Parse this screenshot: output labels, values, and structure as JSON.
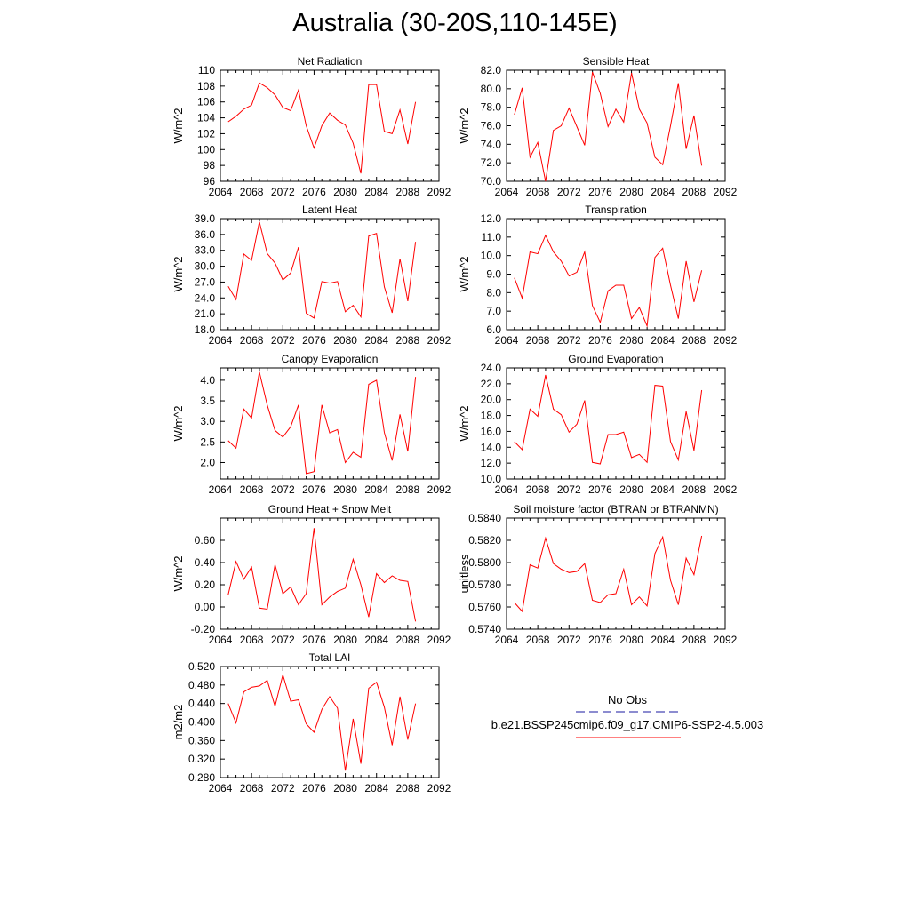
{
  "title": "Australia (30-20S,110-145E)",
  "legend": {
    "obs_label": "No Obs",
    "obs_color": "#1a1aa0",
    "model_label": "b.e21.BSSP245cmip6.f09_g17.CMIP6-SSP2-4.5.003",
    "model_color": "#ff0000"
  },
  "chart_data": [
    {
      "type": "line",
      "title": "Net Radiation",
      "ylabel": "W/m^2",
      "xlim": [
        2064,
        2092
      ],
      "xticks": [
        2064,
        2068,
        2072,
        2076,
        2080,
        2084,
        2088,
        2092
      ],
      "ylim": [
        96,
        110
      ],
      "yticks": [
        "96",
        "98",
        "100",
        "102",
        "104",
        "106",
        "108",
        "110"
      ],
      "x": [
        2065,
        2066,
        2067,
        2068,
        2069,
        2070,
        2071,
        2072,
        2073,
        2074,
        2075,
        2076,
        2077,
        2078,
        2079,
        2080,
        2081,
        2082,
        2083,
        2084,
        2085,
        2086,
        2087,
        2088,
        2089
      ],
      "series": [
        {
          "values": [
            103.5,
            104.2,
            105.1,
            105.6,
            108.4,
            107.8,
            106.9,
            105.3,
            104.9,
            107.5,
            103.0,
            100.2,
            103.0,
            104.6,
            103.7,
            103.1,
            100.8,
            97.0,
            108.2,
            108.2,
            102.3,
            102.0,
            105.0,
            100.7,
            106.0
          ]
        }
      ]
    },
    {
      "type": "line",
      "title": "Sensible Heat",
      "ylabel": "W/m^2",
      "xlim": [
        2064,
        2092
      ],
      "xticks": [
        2064,
        2068,
        2072,
        2076,
        2080,
        2084,
        2088,
        2092
      ],
      "ylim": [
        70,
        82
      ],
      "yticks": [
        "70.0",
        "72.0",
        "74.0",
        "76.0",
        "78.0",
        "80.0",
        "82.0"
      ],
      "x": [
        2065,
        2066,
        2067,
        2068,
        2069,
        2070,
        2071,
        2072,
        2073,
        2074,
        2075,
        2076,
        2077,
        2078,
        2079,
        2080,
        2081,
        2082,
        2083,
        2084,
        2085,
        2086,
        2087,
        2088,
        2089
      ],
      "series": [
        {
          "values": [
            77.2,
            80.1,
            72.6,
            74.2,
            70.0,
            75.5,
            76.0,
            77.9,
            75.9,
            73.9,
            81.8,
            79.5,
            75.9,
            77.8,
            76.4,
            81.7,
            77.8,
            76.3,
            72.6,
            71.8,
            76.0,
            80.6,
            73.5,
            77.1,
            71.7
          ]
        }
      ]
    },
    {
      "type": "line",
      "title": "Latent Heat",
      "ylabel": "W/m^2",
      "xlim": [
        2064,
        2092
      ],
      "xticks": [
        2064,
        2068,
        2072,
        2076,
        2080,
        2084,
        2088,
        2092
      ],
      "ylim": [
        18,
        39
      ],
      "yticks": [
        "18.0",
        "21.0",
        "24.0",
        "27.0",
        "30.0",
        "33.0",
        "36.0",
        "39.0"
      ],
      "x": [
        2065,
        2066,
        2067,
        2068,
        2069,
        2070,
        2071,
        2072,
        2073,
        2074,
        2075,
        2076,
        2077,
        2078,
        2079,
        2080,
        2081,
        2082,
        2083,
        2084,
        2085,
        2086,
        2087,
        2088,
        2089
      ],
      "series": [
        {
          "values": [
            26.2,
            23.7,
            32.3,
            31.1,
            38.4,
            32.4,
            30.6,
            27.4,
            28.7,
            33.6,
            21.1,
            20.2,
            27.1,
            26.8,
            27.1,
            21.4,
            22.6,
            20.4,
            35.7,
            36.2,
            26.1,
            21.2,
            31.4,
            23.4,
            34.6
          ]
        }
      ]
    },
    {
      "type": "line",
      "title": "Transpiration",
      "ylabel": "W/m^2",
      "xlim": [
        2064,
        2092
      ],
      "xticks": [
        2064,
        2068,
        2072,
        2076,
        2080,
        2084,
        2088,
        2092
      ],
      "ylim": [
        6,
        12
      ],
      "yticks": [
        "6.0",
        "7.0",
        "8.0",
        "9.0",
        "10.0",
        "11.0",
        "12.0"
      ],
      "x": [
        2065,
        2066,
        2067,
        2068,
        2069,
        2070,
        2071,
        2072,
        2073,
        2074,
        2075,
        2076,
        2077,
        2078,
        2079,
        2080,
        2081,
        2082,
        2083,
        2084,
        2085,
        2086,
        2087,
        2088,
        2089
      ],
      "series": [
        {
          "values": [
            8.8,
            7.7,
            10.2,
            10.1,
            11.1,
            10.2,
            9.7,
            8.9,
            9.1,
            10.2,
            7.3,
            6.4,
            8.1,
            8.4,
            8.4,
            6.6,
            7.2,
            6.2,
            9.9,
            10.4,
            8.4,
            6.6,
            9.7,
            7.5,
            9.2
          ]
        }
      ]
    },
    {
      "type": "line",
      "title": "Canopy Evaporation",
      "ylabel": "W/m^2",
      "xlim": [
        2064,
        2092
      ],
      "xticks": [
        2064,
        2068,
        2072,
        2076,
        2080,
        2084,
        2088,
        2092
      ],
      "ylim": [
        1.6,
        4.3
      ],
      "yticks": [
        "2.0",
        "2.5",
        "3.0",
        "3.5",
        "4.0"
      ],
      "x": [
        2065,
        2066,
        2067,
        2068,
        2069,
        2070,
        2071,
        2072,
        2073,
        2074,
        2075,
        2076,
        2077,
        2078,
        2079,
        2080,
        2081,
        2082,
        2083,
        2084,
        2085,
        2086,
        2087,
        2088,
        2089
      ],
      "series": [
        {
          "values": [
            2.53,
            2.35,
            3.3,
            3.08,
            4.2,
            3.4,
            2.78,
            2.62,
            2.87,
            3.4,
            1.73,
            1.78,
            3.4,
            2.72,
            2.8,
            2.0,
            2.25,
            2.13,
            3.9,
            4.0,
            2.73,
            2.05,
            3.17,
            2.27,
            4.08
          ]
        }
      ]
    },
    {
      "type": "line",
      "title": "Ground Evaporation",
      "ylabel": "W/m^2",
      "xlim": [
        2064,
        2092
      ],
      "xticks": [
        2064,
        2068,
        2072,
        2076,
        2080,
        2084,
        2088,
        2092
      ],
      "ylim": [
        10,
        24
      ],
      "yticks": [
        "10.0",
        "12.0",
        "14.0",
        "16.0",
        "18.0",
        "20.0",
        "22.0",
        "24.0"
      ],
      "x": [
        2065,
        2066,
        2067,
        2068,
        2069,
        2070,
        2071,
        2072,
        2073,
        2074,
        2075,
        2076,
        2077,
        2078,
        2079,
        2080,
        2081,
        2082,
        2083,
        2084,
        2085,
        2086,
        2087,
        2088,
        2089
      ],
      "series": [
        {
          "values": [
            14.7,
            13.7,
            18.8,
            17.9,
            23.1,
            18.8,
            18.1,
            15.9,
            16.9,
            19.9,
            12.1,
            11.9,
            15.6,
            15.6,
            15.9,
            12.7,
            13.1,
            12.1,
            21.8,
            21.7,
            14.7,
            12.4,
            18.5,
            13.6,
            21.2
          ]
        }
      ]
    },
    {
      "type": "line",
      "title": "Ground Heat + Snow Melt",
      "ylabel": "W/m^2",
      "xlim": [
        2064,
        2092
      ],
      "xticks": [
        2064,
        2068,
        2072,
        2076,
        2080,
        2084,
        2088,
        2092
      ],
      "ylim": [
        -0.2,
        0.8
      ],
      "yticks": [
        "-0.20",
        "0.00",
        "0.20",
        "0.40",
        "0.60"
      ],
      "x": [
        2065,
        2066,
        2067,
        2068,
        2069,
        2070,
        2071,
        2072,
        2073,
        2074,
        2075,
        2076,
        2077,
        2078,
        2079,
        2080,
        2081,
        2082,
        2083,
        2084,
        2085,
        2086,
        2087,
        2088,
        2089
      ],
      "series": [
        {
          "values": [
            0.11,
            0.41,
            0.25,
            0.36,
            -0.01,
            -0.02,
            0.38,
            0.12,
            0.18,
            0.02,
            0.12,
            0.71,
            0.02,
            0.09,
            0.14,
            0.17,
            0.43,
            0.2,
            -0.09,
            0.3,
            0.22,
            0.28,
            0.24,
            0.23,
            -0.13
          ]
        }
      ]
    },
    {
      "type": "line",
      "title": "Soil moisture factor (BTRAN or BTRANMN)",
      "ylabel": "unitless",
      "xlim": [
        2064,
        2092
      ],
      "xticks": [
        2064,
        2068,
        2072,
        2076,
        2080,
        2084,
        2088,
        2092
      ],
      "ylim": [
        0.574,
        0.584
      ],
      "yticks": [
        "0.5740",
        "0.5760",
        "0.5780",
        "0.5800",
        "0.5820",
        "0.5840"
      ],
      "x": [
        2065,
        2066,
        2067,
        2068,
        2069,
        2070,
        2071,
        2072,
        2073,
        2074,
        2075,
        2076,
        2077,
        2078,
        2079,
        2080,
        2081,
        2082,
        2083,
        2084,
        2085,
        2086,
        2087,
        2088,
        2089
      ],
      "series": [
        {
          "values": [
            0.5764,
            0.5756,
            0.5798,
            0.5795,
            0.5822,
            0.5799,
            0.5794,
            0.5791,
            0.5792,
            0.5799,
            0.5766,
            0.5764,
            0.5771,
            0.5772,
            0.5794,
            0.5762,
            0.5769,
            0.5761,
            0.5808,
            0.5823,
            0.5784,
            0.5762,
            0.5804,
            0.5789,
            0.5824
          ]
        }
      ]
    },
    {
      "type": "line",
      "title": "Total LAI",
      "ylabel": "m2/m2",
      "xlim": [
        2064,
        2092
      ],
      "xticks": [
        2064,
        2068,
        2072,
        2076,
        2080,
        2084,
        2088,
        2092
      ],
      "ylim": [
        0.28,
        0.52
      ],
      "yticks": [
        "0.280",
        "0.320",
        "0.360",
        "0.400",
        "0.440",
        "0.480",
        "0.520"
      ],
      "x": [
        2065,
        2066,
        2067,
        2068,
        2069,
        2070,
        2071,
        2072,
        2073,
        2074,
        2075,
        2076,
        2077,
        2078,
        2079,
        2080,
        2081,
        2082,
        2083,
        2084,
        2085,
        2086,
        2087,
        2088,
        2089
      ],
      "series": [
        {
          "values": [
            0.44,
            0.398,
            0.465,
            0.475,
            0.478,
            0.49,
            0.434,
            0.502,
            0.445,
            0.448,
            0.396,
            0.378,
            0.427,
            0.455,
            0.43,
            0.295,
            0.407,
            0.31,
            0.473,
            0.486,
            0.432,
            0.35,
            0.455,
            0.362,
            0.44
          ]
        }
      ]
    }
  ]
}
